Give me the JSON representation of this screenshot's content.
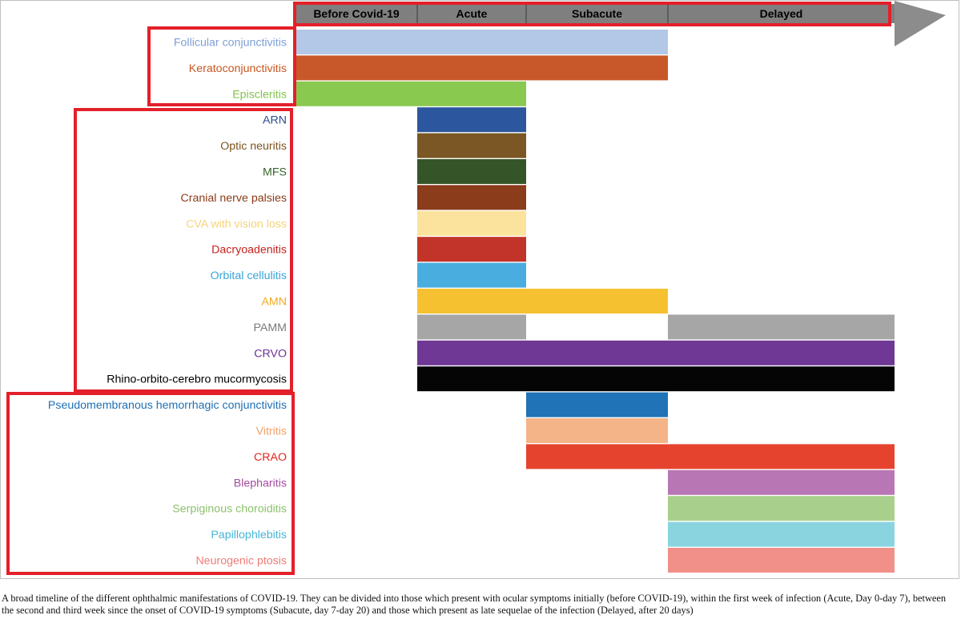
{
  "chart_data": {
    "type": "timeline",
    "phases": [
      "Before Covid-19",
      "Acute",
      "Subacute",
      "Delayed"
    ],
    "groups": [
      {
        "name": "group-1",
        "rows": [
          0,
          1,
          2
        ]
      },
      {
        "name": "group-2",
        "rows": [
          3,
          4,
          5,
          6,
          7,
          8,
          9,
          10,
          11,
          12,
          13
        ]
      },
      {
        "name": "group-3",
        "rows": [
          14,
          15,
          16,
          17,
          18,
          19,
          20
        ]
      }
    ],
    "manifestations": [
      {
        "label": "Follicular conjunctivitis",
        "label_color": "#7f9fd6",
        "bar_color": "#b3c7e6",
        "segments": [
          [
            "Before Covid-19",
            "Subacute"
          ]
        ]
      },
      {
        "label": "Keratoconjunctivitis",
        "label_color": "#c8561f",
        "bar_color": "#c8582a",
        "segments": [
          [
            "Before Covid-19",
            "Subacute"
          ]
        ]
      },
      {
        "label": "Episcleritis",
        "label_color": "#84c24c",
        "bar_color": "#8ac94f",
        "segments": [
          [
            "Before Covid-19",
            "Acute"
          ]
        ]
      },
      {
        "label": "ARN",
        "label_color": "#2b4c90",
        "bar_color": "#2c579f",
        "segments": [
          [
            "Acute",
            "Acute"
          ]
        ]
      },
      {
        "label": "Optic neuritis",
        "label_color": "#7b5520",
        "bar_color": "#7a5725",
        "segments": [
          [
            "Acute",
            "Acute"
          ]
        ]
      },
      {
        "label": "MFS",
        "label_color": "#35662a",
        "bar_color": "#355529",
        "segments": [
          [
            "Acute",
            "Acute"
          ]
        ]
      },
      {
        "label": "Cranial nerve palsies",
        "label_color": "#8a3b17",
        "bar_color": "#8a3c1b",
        "segments": [
          [
            "Acute",
            "Acute"
          ]
        ]
      },
      {
        "label": "CVA with vision loss",
        "label_color": "#f5d47a",
        "bar_color": "#fbe39e",
        "segments": [
          [
            "Acute",
            "Acute"
          ]
        ]
      },
      {
        "label": "Dacryoadenitis",
        "label_color": "#c4221e",
        "bar_color": "#c2342a",
        "segments": [
          [
            "Acute",
            "Acute"
          ]
        ]
      },
      {
        "label": "Orbital cellulitis",
        "label_color": "#3aa4d9",
        "bar_color": "#49ade0",
        "segments": [
          [
            "Acute",
            "Acute"
          ]
        ]
      },
      {
        "label": "AMN",
        "label_color": "#f2ab1d",
        "bar_color": "#f6c131",
        "segments": [
          [
            "Acute",
            "Subacute"
          ]
        ]
      },
      {
        "label": "PAMM",
        "label_color": "#7a7a7a",
        "bar_color": "#a6a6a6",
        "segments": [
          [
            "Acute",
            "Acute"
          ],
          [
            "Delayed",
            "Delayed"
          ]
        ]
      },
      {
        "label": "CRVO",
        "label_color": "#6a2f93",
        "bar_color": "#6e3894",
        "segments": [
          [
            "Acute",
            "Delayed"
          ]
        ]
      },
      {
        "label": "Rhino-orbito-cerebro mucormycosis",
        "label_color": "#000000",
        "bar_color": "#050505",
        "segments": [
          [
            "Acute",
            "Delayed"
          ]
        ]
      },
      {
        "label": "Pseudomembranous hemorrhagic conjunctivitis",
        "label_color": "#1f6fb3",
        "bar_color": "#2073b6",
        "segments": [
          [
            "Subacute",
            "Subacute"
          ]
        ]
      },
      {
        "label": "Vitritis",
        "label_color": "#f2a06a",
        "bar_color": "#f4b488",
        "segments": [
          [
            "Subacute",
            "Subacute"
          ]
        ]
      },
      {
        "label": "CRAO",
        "label_color": "#e0241b",
        "bar_color": "#e6432f",
        "segments": [
          [
            "Subacute",
            "Delayed"
          ]
        ]
      },
      {
        "label": "Blepharitis",
        "label_color": "#a34ba0",
        "bar_color": "#b976b4",
        "segments": [
          [
            "Delayed",
            "Delayed"
          ]
        ]
      },
      {
        "label": "Serpiginous choroiditis",
        "label_color": "#8cc26c",
        "bar_color": "#a8d08c",
        "segments": [
          [
            "Delayed",
            "Delayed"
          ]
        ]
      },
      {
        "label": "Papillophlebitis",
        "label_color": "#45b6d6",
        "bar_color": "#8ad4e0",
        "segments": [
          [
            "Delayed",
            "Delayed"
          ]
        ]
      },
      {
        "label": "Neurogenic ptosis",
        "label_color": "#ef7c76",
        "bar_color": "#f19089",
        "segments": [
          [
            "Delayed",
            "Delayed"
          ]
        ]
      }
    ],
    "colors": {
      "header_fill": "#7f7f7f",
      "arrow_fill": "#8c8c8c",
      "highlight_border": "#e3202a"
    }
  },
  "caption": "A broad timeline of the different ophthalmic manifestations of COVID-19. They can be divided into those which present with ocular symptoms initially (before COVID-19), within the first week of infection (Acute, Day 0-day 7), between the second and third week since the onset of COVID-19 symptoms (Subacute, day 7-day 20) and those which present as late sequelae of the infection (Delayed, after 20 days)"
}
